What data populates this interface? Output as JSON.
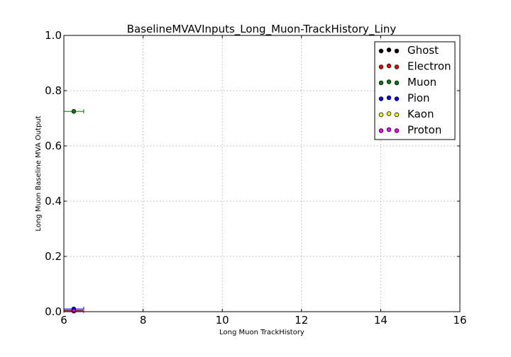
{
  "chart_data": {
    "type": "scatter",
    "title": "BaselineMVAVInputs_Long_Muon-TrackHistory_Liny",
    "xlabel": "Long Muon TrackHistory",
    "ylabel": "Long Muon Baseline MVA Output",
    "xlim": [
      6,
      16
    ],
    "ylim": [
      0,
      1.0
    ],
    "xticks": [
      "6",
      "8",
      "10",
      "12",
      "14",
      "16"
    ],
    "yticks": [
      "0.0",
      "0.2",
      "0.4",
      "0.6",
      "0.8",
      "1.0"
    ],
    "grid": true,
    "legend_position": "top-right",
    "series": [
      {
        "name": "Ghost",
        "color": "#000000",
        "points": [
          {
            "x": 6.25,
            "y": 0.005,
            "xerr": 0.25
          }
        ]
      },
      {
        "name": "Electron",
        "color": "#ff0000",
        "points": [
          {
            "x": 6.25,
            "y": 0.003,
            "xerr": 0.25
          }
        ]
      },
      {
        "name": "Muon",
        "color": "#008000",
        "points": [
          {
            "x": 6.25,
            "y": 0.725,
            "xerr": 0.25
          }
        ]
      },
      {
        "name": "Pion",
        "color": "#0000ff",
        "points": [
          {
            "x": 6.25,
            "y": 0.01,
            "xerr": 0.25
          }
        ]
      },
      {
        "name": "Kaon",
        "color": "#ffff00",
        "points": [
          {
            "x": 6.25,
            "y": 0.002,
            "xerr": 0.25
          }
        ]
      },
      {
        "name": "Proton",
        "color": "#ff00ff",
        "points": [
          {
            "x": 6.25,
            "y": 0.002,
            "xerr": 0.25
          }
        ]
      }
    ]
  }
}
